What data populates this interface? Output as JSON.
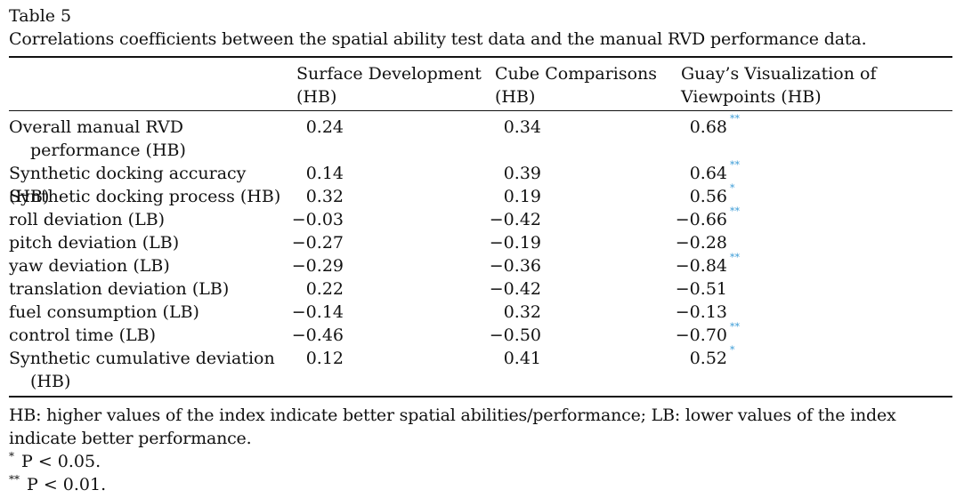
{
  "table": {
    "label": "Table 5",
    "title": "Correlations coefficients between the spatial ability test data and the manual RVD performance data.",
    "columns": [
      {
        "line1": "Surface Development",
        "line2": "(HB)"
      },
      {
        "line1": "Cube Comparisons",
        "line2": "(HB)"
      },
      {
        "line1": "Guay’s Visualization of",
        "line2": "Viewpoints (HB)"
      }
    ],
    "rows": [
      {
        "label1": "Overall manual RVD",
        "label2": "performance (HB)",
        "v1": "0.24",
        "v2": "0.34",
        "v3": "0.68",
        "s3": "**"
      },
      {
        "label1": "Synthetic docking accuracy (HB)",
        "label2": "",
        "v1": "0.14",
        "v2": "0.39",
        "v3": "0.64",
        "s3": "**"
      },
      {
        "label1": "Synthetic docking process (HB)",
        "label2": "",
        "v1": "0.32",
        "v2": "0.19",
        "v3": "0.56",
        "s3": "*"
      },
      {
        "label1": "roll deviation (LB)",
        "label2": "",
        "v1": "−0.03",
        "v2": "−0.42",
        "v3": "−0.66",
        "s3": "**"
      },
      {
        "label1": "pitch deviation (LB)",
        "label2": "",
        "v1": "−0.27",
        "v2": "−0.19",
        "v3": "−0.28",
        "s3": ""
      },
      {
        "label1": "yaw deviation (LB)",
        "label2": "",
        "v1": "−0.29",
        "v2": "−0.36",
        "v3": "−0.84",
        "s3": "**"
      },
      {
        "label1": "translation deviation (LB)",
        "label2": "",
        "v1": "0.22",
        "v2": "−0.42",
        "v3": "−0.51",
        "s3": ""
      },
      {
        "label1": "fuel consumption (LB)",
        "label2": "",
        "v1": "−0.14",
        "v2": "0.32",
        "v3": "−0.13",
        "s3": ""
      },
      {
        "label1": "control time (LB)",
        "label2": "",
        "v1": "−0.46",
        "v2": "−0.50",
        "v3": "−0.70",
        "s3": "**"
      },
      {
        "label1": "Synthetic cumulative deviation",
        "label2": "(HB)",
        "v1": "0.12",
        "v2": "0.41",
        "v3": "0.52",
        "s3": "*"
      }
    ],
    "footnotes": {
      "note": "HB: higher values of the index indicate better spatial abilities/performance; LB: lower values of the index indicate better performance.",
      "sig1_mark": "*",
      "sig1_text": "P < 0.05.",
      "sig2_mark": "**",
      "sig2_text": "P < 0.01."
    }
  },
  "colors": {
    "text": "#111111",
    "significance_marker": "#3a9bd6"
  }
}
